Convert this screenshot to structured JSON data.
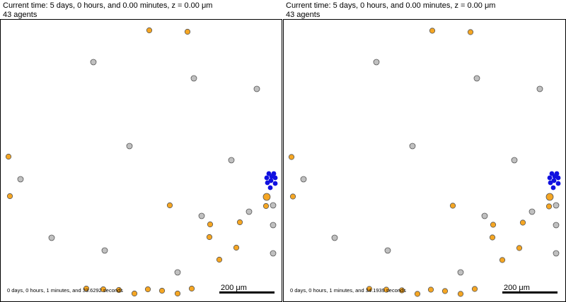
{
  "colors": {
    "orange": "#f5a623",
    "gray": "#c0c0c0",
    "blue": "#1010e0",
    "outline": "#555555"
  },
  "panels": [
    {
      "header_line1": "Current time: 5 days, 0 hours, and 0.00 minutes, z = 0.00 μm",
      "header_line2": "43 agents",
      "elapsed": "0 days, 0 hours, 1 minutes, and 33.6292 seconds",
      "scale_label": "200 μm"
    },
    {
      "header_line1": "Current time: 5 days, 0 hours, and 0.00 minutes, z = 0.00 μm",
      "header_line2": "43 agents",
      "elapsed": "0 days, 0 hours, 1 minutes, and 34.1939 seconds",
      "scale_label": "200 μm"
    }
  ]
}
